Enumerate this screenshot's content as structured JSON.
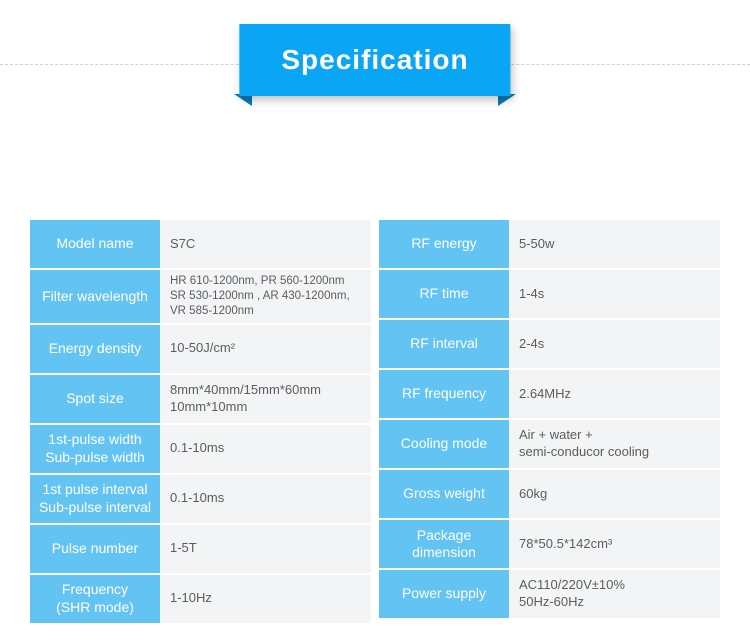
{
  "title": "Specification",
  "colors": {
    "accent": "#0aa5f4",
    "label_bg": "#63c4f4",
    "value_bg": "#f2f4f6",
    "label_text": "#ffffff",
    "value_text": "#5c5c5c"
  },
  "left": [
    {
      "label": "Model name",
      "value": "S7C"
    },
    {
      "label": "Filter wavelength",
      "value": "HR 610-1200nm, PR 560-1200nm\nSR 530-1200nm , AR 430-1200nm, VR 585-1200nm"
    },
    {
      "label": "Energy density",
      "value": "10-50J/cm²"
    },
    {
      "label": "Spot size",
      "value": "8mm*40mm/15mm*60mm\n10mm*10mm"
    },
    {
      "label": "1st-pulse width\nSub-pulse width",
      "value": "0.1-10ms"
    },
    {
      "label": "1st pulse interval\nSub-pulse interval",
      "value": "0.1-10ms"
    },
    {
      "label": "Pulse number",
      "value": "1-5T"
    },
    {
      "label": "Frequency\n(SHR mode)",
      "value": "1-10Hz"
    }
  ],
  "right": [
    {
      "label": "RF energy",
      "value": "5-50w"
    },
    {
      "label": "RF time",
      "value": "1-4s"
    },
    {
      "label": "RF interval",
      "value": "2-4s"
    },
    {
      "label": "RF frequency",
      "value": "2.64MHz"
    },
    {
      "label": "Cooling mode",
      "value": "Air + water +\nsemi-conducor cooling"
    },
    {
      "label": "Gross weight",
      "value": "60kg"
    },
    {
      "label": "Package dimension",
      "value": "78*50.5*142cm³"
    },
    {
      "label": "Power supply",
      "value": "AC110/220V±10%\n50Hz-60Hz"
    }
  ]
}
